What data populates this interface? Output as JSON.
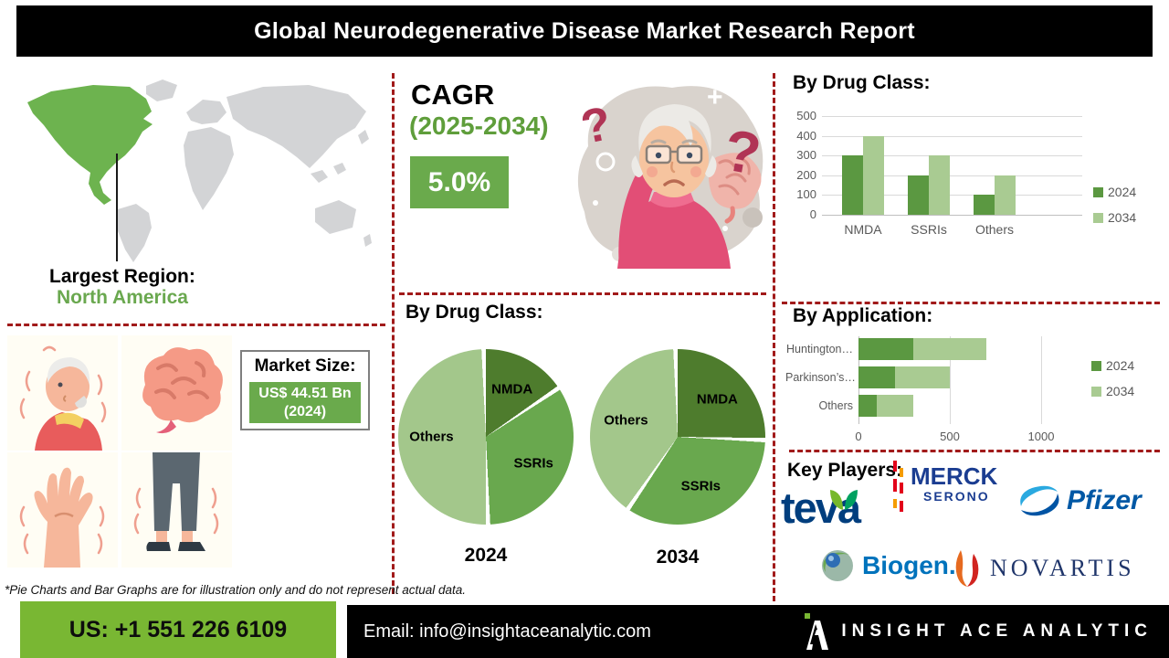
{
  "header": {
    "title": "Global Neurodegenerative Disease Market Research Report"
  },
  "region": {
    "label": "Largest Region:",
    "value": "North America"
  },
  "cagr": {
    "label": "CAGR",
    "period": "(2025-2034)",
    "value": "5.0%"
  },
  "market_size": {
    "label": "Market Size:",
    "value": "US$ 44.51 Bn",
    "year": "(2024)"
  },
  "footnote": "*Pie Charts and Bar Graphs are for illustration only and do not represent actual data.",
  "key_players": {
    "label": "Key Players:",
    "logos": {
      "teva": "teva",
      "merck_line1": "MERCK",
      "merck_line2": "SERONO",
      "pfizer": "Pfizer",
      "biogen": "Biogen.",
      "novartis": "NOVARTIS"
    }
  },
  "footer": {
    "phone": "US: +1 551 226 6109",
    "email": "Email: info@insightaceanalytic.com",
    "brand": "INSIGHT ACE ANALYTIC"
  },
  "colors": {
    "accent_green": "#6aaa4c",
    "footer_green": "#79b733",
    "dashed_red": "#a11a1a",
    "bar_2024": "#5b9841",
    "bar_2034": "#a9cb92",
    "pie_nmda": "#4e7c2d",
    "pie_ssris": "#69a84e",
    "pie_others": "#a3c78b",
    "map_highlight": "#6db34f",
    "map_base": "#d3d4d6"
  },
  "chart_data": [
    {
      "id": "drug_class_bar",
      "type": "bar",
      "title": "By Drug Class:",
      "categories": [
        "NMDA",
        "SSRIs",
        "Others"
      ],
      "series": [
        {
          "name": "2024",
          "values": [
            300,
            200,
            100
          ],
          "color": "#5b9841"
        },
        {
          "name": "2034",
          "values": [
            400,
            300,
            200
          ],
          "color": "#a9cb92"
        }
      ],
      "ylim": [
        0,
        500
      ],
      "yticks": [
        0,
        100,
        200,
        300,
        400,
        500
      ],
      "grid": true,
      "legend_position": "right"
    },
    {
      "id": "drug_class_pies",
      "type": "pie",
      "title": "By Drug Class:",
      "colors": {
        "NMDA": "#4e7c2d",
        "SSRIs": "#69a84e",
        "Others": "#a3c78b"
      },
      "pies": [
        {
          "label": "2024",
          "slices": [
            {
              "name": "NMDA",
              "value": 16
            },
            {
              "name": "SSRIs",
              "value": 34
            },
            {
              "name": "Others",
              "value": 50
            }
          ]
        },
        {
          "label": "2034",
          "slices": [
            {
              "name": "NMDA",
              "value": 26
            },
            {
              "name": "SSRIs",
              "value": 34
            },
            {
              "name": "Others",
              "value": 40
            }
          ]
        }
      ]
    },
    {
      "id": "application_bar",
      "type": "bar",
      "orientation": "horizontal",
      "stacked": true,
      "title": "By Application:",
      "categories": [
        "Huntington…",
        "Parkinson’s…",
        "Others"
      ],
      "series": [
        {
          "name": "2024",
          "values": [
            300,
            200,
            100
          ],
          "color": "#5b9841"
        },
        {
          "name": "2034",
          "values": [
            400,
            300,
            200
          ],
          "color": "#a9cb92"
        }
      ],
      "xlim": [
        0,
        1250
      ],
      "xticks": [
        0,
        500,
        1000
      ],
      "grid": true,
      "legend_position": "right"
    }
  ]
}
